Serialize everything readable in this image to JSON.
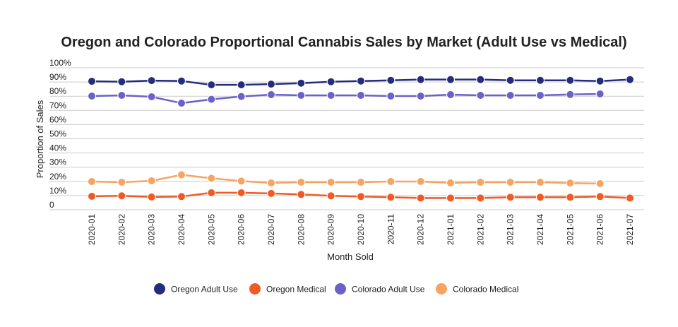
{
  "chart_data": {
    "type": "line",
    "title": "Oregon and Colorado Proportional Cannabis Sales by Market (Adult Use vs Medical)",
    "xlabel": "Month Sold",
    "ylabel": "Proportion of Sales",
    "ylim": [
      0,
      100
    ],
    "y_ticks": [
      "0",
      "10%",
      "20%",
      "30%",
      "40%",
      "50%",
      "60%",
      "70%",
      "80%",
      "90%",
      "100%"
    ],
    "grid": true,
    "legend_placement": "bottom",
    "categories": [
      "2020-01",
      "2020-02",
      "2020-03",
      "2020-04",
      "2020-05",
      "2020-06",
      "2020-07",
      "2020-08",
      "2020-09",
      "2020-10",
      "2020-11",
      "2020-12",
      "2021-01",
      "2021-02",
      "2021-03",
      "2021-04",
      "2021-05",
      "2021-06",
      "2021-07"
    ],
    "series": [
      {
        "name": "Oregon Adult Use",
        "color": "#232d7c",
        "values": [
          90.5,
          90.2,
          91.0,
          90.7,
          88.0,
          88.0,
          88.5,
          89.2,
          90.2,
          90.7,
          91.2,
          91.7,
          91.7,
          91.7,
          91.2,
          91.2,
          91.2,
          90.7,
          91.7
        ]
      },
      {
        "name": "Oregon Medical",
        "color": "#f05a24",
        "values": [
          9.5,
          9.8,
          9.0,
          9.3,
          12.0,
          12.0,
          11.5,
          10.8,
          9.8,
          9.3,
          8.8,
          8.3,
          8.3,
          8.3,
          8.8,
          8.8,
          8.8,
          9.3,
          8.3
        ]
      },
      {
        "name": "Colorado Adult Use",
        "color": "#6a62c9",
        "values": [
          80.1,
          80.6,
          79.6,
          75.1,
          77.8,
          79.8,
          81.1,
          80.6,
          80.6,
          80.6,
          80.1,
          80.1,
          81.1,
          80.6,
          80.6,
          80.6,
          81.2,
          81.6,
          null
        ]
      },
      {
        "name": "Colorado Medical",
        "color": "#f7a462",
        "values": [
          19.9,
          19.4,
          20.4,
          24.6,
          22.2,
          20.2,
          18.9,
          19.4,
          19.4,
          19.4,
          19.9,
          19.9,
          18.9,
          19.4,
          19.4,
          19.4,
          18.8,
          18.4,
          null
        ]
      }
    ]
  }
}
